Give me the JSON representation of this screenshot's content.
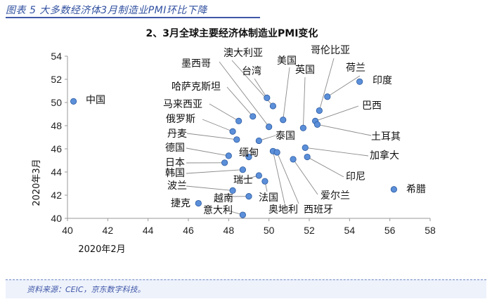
{
  "figure": {
    "caption": "图表 5 大多数经济体3月制造业PMI环比下降",
    "source": "资料来源：CEIC，京东数字科技。"
  },
  "chart_data": {
    "type": "scatter",
    "title": "2、3月全球主要经济体制造业PMI变化",
    "xlabel": "2020年2月",
    "ylabel": "2020年3月",
    "xlim": [
      40,
      58
    ],
    "ylim": [
      40,
      54
    ],
    "xticks": [
      "40",
      "42",
      "44",
      "46",
      "48",
      "50",
      "52",
      "54",
      "56",
      "58"
    ],
    "yticks": [
      "40",
      "42",
      "44",
      "46",
      "48",
      "50",
      "52",
      "54"
    ],
    "grid": false,
    "marker_color": "#5b8fd9",
    "marker_edge": "#2c5aa0",
    "points": [
      {
        "name": "中国",
        "x": 40.3,
        "y": 50.1
      },
      {
        "name": "印度",
        "x": 54.5,
        "y": 51.8
      },
      {
        "name": "荷兰",
        "x": 52.9,
        "y": 50.5
      },
      {
        "name": "哥伦比亚",
        "x": 52.5,
        "y": 49.3
      },
      {
        "name": "巴西",
        "x": 52.3,
        "y": 48.4
      },
      {
        "name": "土耳其",
        "x": 52.4,
        "y": 48.1
      },
      {
        "name": "英国",
        "x": 51.7,
        "y": 47.8
      },
      {
        "name": "美国",
        "x": 50.7,
        "y": 48.5
      },
      {
        "name": "澳大利亚",
        "x": 50.2,
        "y": 49.7
      },
      {
        "name": "台湾",
        "x": 49.9,
        "y": 50.4
      },
      {
        "name": "墨西哥",
        "x": 50.0,
        "y": 47.9
      },
      {
        "name": "哈萨克斯坦",
        "x": 49.2,
        "y": 48.8
      },
      {
        "name": "马来西亚",
        "x": 48.5,
        "y": 48.4
      },
      {
        "name": "俄罗斯",
        "x": 48.2,
        "y": 47.5
      },
      {
        "name": "丹麦",
        "x": 48.4,
        "y": 46.8
      },
      {
        "name": "泰国",
        "x": 49.5,
        "y": 46.7
      },
      {
        "name": "加拿大",
        "x": 51.8,
        "y": 46.1
      },
      {
        "name": "德国",
        "x": 48.0,
        "y": 45.4
      },
      {
        "name": "缅甸",
        "x": 49.0,
        "y": 45.3
      },
      {
        "name": "印尼",
        "x": 51.9,
        "y": 45.3
      },
      {
        "name": "日本",
        "x": 47.8,
        "y": 44.8
      },
      {
        "name": "爱尔兰",
        "x": 51.2,
        "y": 45.1
      },
      {
        "name": "奥地利",
        "x": 50.2,
        "y": 45.8
      },
      {
        "name": "西班牙",
        "x": 50.4,
        "y": 45.7
      },
      {
        "name": "韩国",
        "x": 48.7,
        "y": 44.2
      },
      {
        "name": "瑞士",
        "x": 49.5,
        "y": 43.7
      },
      {
        "name": "法国",
        "x": 49.8,
        "y": 43.2
      },
      {
        "name": "波兰",
        "x": 48.2,
        "y": 42.4
      },
      {
        "name": "越南",
        "x": 49.0,
        "y": 41.9
      },
      {
        "name": "希腊",
        "x": 56.2,
        "y": 42.5
      },
      {
        "name": "捷克",
        "x": 46.5,
        "y": 41.3
      },
      {
        "name": "意大利",
        "x": 48.7,
        "y": 40.3
      }
    ]
  }
}
